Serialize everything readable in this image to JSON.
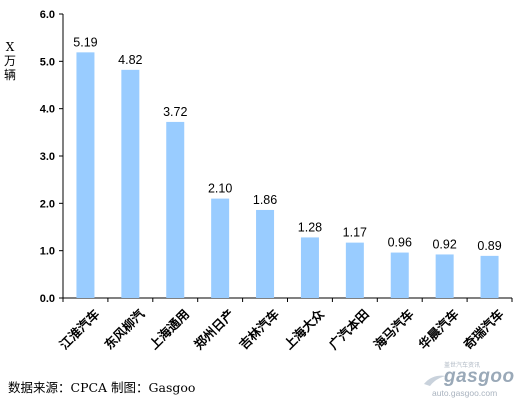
{
  "chart_data": {
    "type": "bar",
    "ylabel": "X 万辆",
    "categories": [
      "江淮汽车",
      "东风柳汽",
      "上海通用",
      "郑州日产",
      "吉林汽车",
      "上海大众",
      "广汽本田",
      "海马汽车",
      "华晨汽车",
      "奇瑞汽车"
    ],
    "values": [
      5.19,
      4.82,
      3.72,
      2.1,
      1.86,
      1.28,
      1.17,
      0.96,
      0.92,
      0.89
    ],
    "value_labels": [
      "5.19",
      "4.82",
      "3.72",
      "2.10",
      "1.86",
      "1.28",
      "1.17",
      "0.96",
      "0.92",
      "0.89"
    ],
    "ylim": [
      0,
      6
    ],
    "yticks": [
      "0.0",
      "1.0",
      "2.0",
      "3.0",
      "4.0",
      "5.0",
      "6.0"
    ],
    "grid": false,
    "legend": "none",
    "bar_color": "#99ccff"
  },
  "footer": {
    "source": "数据来源：CPCA  制图：Gasgoo"
  },
  "watermark": {
    "logo_text": "gasgoo",
    "tagline": "盖世汽车资讯",
    "url": "auto.gasgoo.com"
  }
}
